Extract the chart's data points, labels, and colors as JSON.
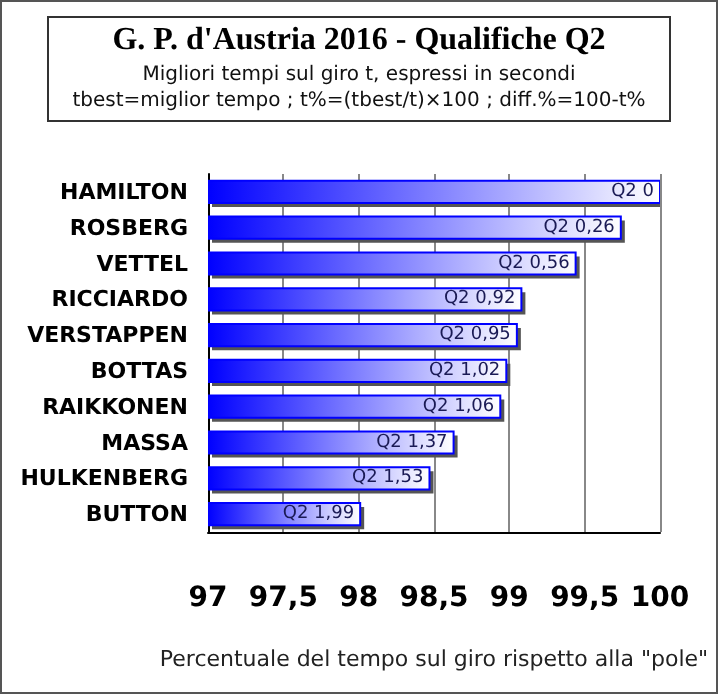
{
  "chart_data": {
    "type": "bar",
    "orientation": "horizontal",
    "title": "G. P. d'Austria 2016 - Qualifiche Q2",
    "subtitle": "Migliori tempi sul giro t, espressi in secondi\ntbest=miglior tempo ; t%=(tbest/t)×100 ; diff.%=100-t%",
    "xlabel": "Percentuale del tempo sul giro rispetto alla \"pole\"",
    "categories": [
      "HAMILTON",
      "ROSBERG",
      "VETTEL",
      "RICCIARDO",
      "VERSTAPPEN",
      "BOTTAS",
      "RAIKKONEN",
      "MASSA",
      "HULKENBERG",
      "BUTTON"
    ],
    "values": [
      100,
      99.74,
      99.44,
      99.08,
      99.05,
      98.98,
      98.94,
      98.63,
      98.47,
      98.01
    ],
    "value_labels": [
      "Q2 0",
      "Q2 0,26",
      "Q2 0,56",
      "Q2 0,92",
      "Q2 0,95",
      "Q2 1,02",
      "Q2 1,06",
      "Q2 1,37",
      "Q2 1,53",
      "Q2 1,99"
    ],
    "color": "#0000ff",
    "xlim": [
      97,
      100
    ],
    "xticks": [
      97,
      {
        "value": 97.5,
        "label": "97,5"
      },
      98,
      {
        "value": 98.5,
        "label": "98,5"
      },
      99,
      {
        "value": 99.5,
        "label": "99,5"
      },
      100
    ],
    "grid": "x"
  }
}
